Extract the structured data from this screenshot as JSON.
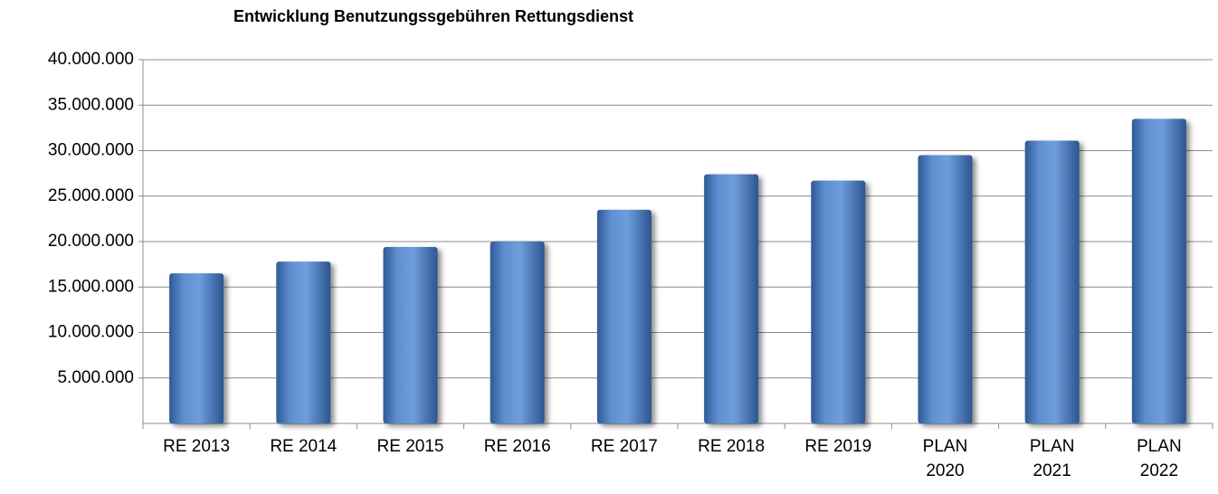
{
  "chart_data": {
    "type": "bar",
    "title": "Entwicklung Benutzungssgebühren Rettungsdienst",
    "categories": [
      "RE 2013",
      "RE 2014",
      "RE 2015",
      "RE 2016",
      "RE 2017",
      "RE 2018",
      "RE 2019",
      "PLAN\n2020",
      "PLAN\n2021",
      "PLAN\n2022"
    ],
    "values": [
      16500000,
      17800000,
      19400000,
      20000000,
      23500000,
      27400000,
      26700000,
      29500000,
      31100000,
      33500000
    ],
    "color": "#4f81bd",
    "ylim": [
      0,
      40000000
    ],
    "yticks": [
      {
        "value": 5000000,
        "label": "5.000.000"
      },
      {
        "value": 10000000,
        "label": "10.000.000"
      },
      {
        "value": 15000000,
        "label": "15.000.000"
      },
      {
        "value": 20000000,
        "label": "20.000.000"
      },
      {
        "value": 25000000,
        "label": "25.000.000"
      },
      {
        "value": 30000000,
        "label": "30.000.000"
      },
      {
        "value": 35000000,
        "label": "35.000.000"
      },
      {
        "value": 40000000,
        "label": "40.000.000"
      }
    ],
    "grid": true
  }
}
